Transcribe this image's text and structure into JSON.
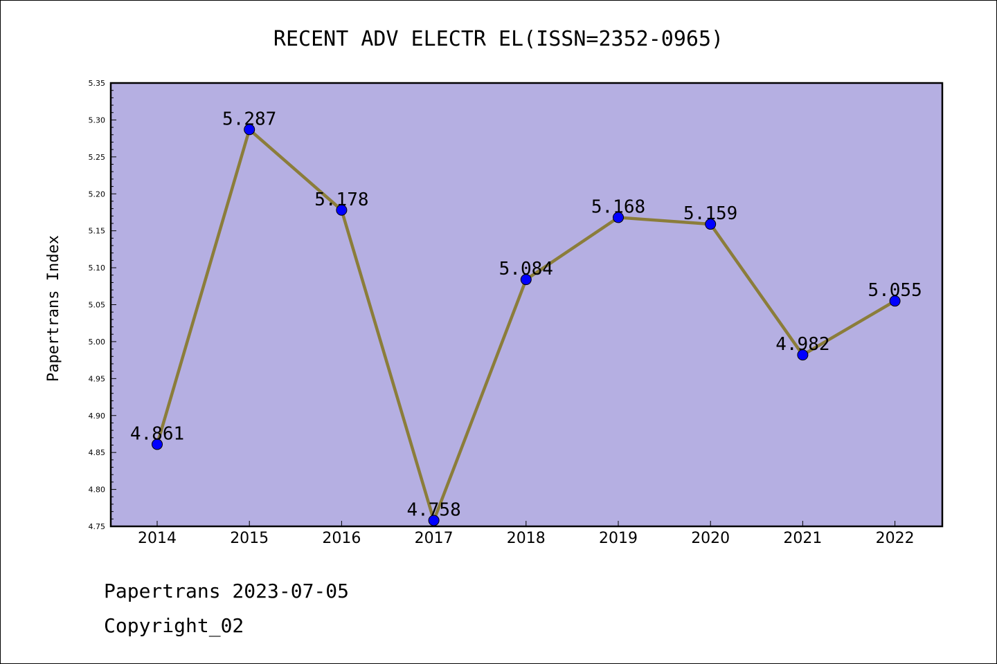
{
  "chart_data": {
    "type": "line",
    "title": "RECENT ADV ELECTR EL(ISSN=2352-0965)",
    "ylabel": "Papertrans Index",
    "xlabel": "",
    "x": [
      "2014",
      "2015",
      "2016",
      "2017",
      "2018",
      "2019",
      "2020",
      "2021",
      "2022"
    ],
    "values": [
      4.861,
      5.287,
      5.178,
      4.758,
      5.084,
      5.168,
      5.159,
      4.982,
      5.055
    ],
    "data_labels": [
      "4.861",
      "5.287",
      "5.178",
      "4.758",
      "5.084",
      "5.168",
      "5.159",
      "4.982",
      "5.055"
    ],
    "ylim": [
      4.75,
      5.35
    ],
    "yticks": [
      "4.75",
      "4.80",
      "4.85",
      "4.90",
      "4.95",
      "5.00",
      "5.05",
      "5.10",
      "5.15",
      "5.20",
      "5.25",
      "5.30",
      "5.35"
    ],
    "grid": false,
    "legend": "none",
    "colors": {
      "plot_background": "#b5afe2",
      "line": "#8b7d3a",
      "marker": "#0000ff"
    }
  },
  "footer": {
    "line1": "Papertrans 2023-07-05",
    "line2": "Copyright_02"
  }
}
